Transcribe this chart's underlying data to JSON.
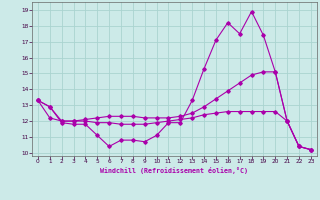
{
  "xlabel": "Windchill (Refroidissement éolien,°C)",
  "xlim": [
    -0.5,
    23.5
  ],
  "ylim": [
    9.8,
    19.5
  ],
  "yticks": [
    10,
    11,
    12,
    13,
    14,
    15,
    16,
    17,
    18,
    19
  ],
  "xticks": [
    0,
    1,
    2,
    3,
    4,
    5,
    6,
    7,
    8,
    9,
    10,
    11,
    12,
    13,
    14,
    15,
    16,
    17,
    18,
    19,
    20,
    21,
    22,
    23
  ],
  "bg_color": "#cceae8",
  "grid_color": "#aad4d0",
  "line_color": "#aa00aa",
  "series": [
    [
      13.3,
      12.9,
      11.9,
      11.8,
      11.8,
      11.1,
      10.4,
      10.8,
      10.8,
      10.7,
      11.1,
      11.9,
      11.9,
      13.3,
      15.3,
      17.1,
      18.2,
      17.5,
      18.9,
      17.4,
      15.1,
      12.0,
      10.4,
      10.2
    ],
    [
      13.3,
      12.2,
      12.0,
      12.0,
      12.1,
      12.2,
      12.3,
      12.3,
      12.3,
      12.2,
      12.2,
      12.2,
      12.3,
      12.5,
      12.9,
      13.4,
      13.9,
      14.4,
      14.9,
      15.1,
      15.1,
      12.0,
      10.4,
      10.2
    ],
    [
      13.3,
      12.9,
      12.0,
      12.0,
      12.0,
      11.9,
      11.9,
      11.8,
      11.8,
      11.8,
      11.9,
      12.0,
      12.1,
      12.2,
      12.4,
      12.5,
      12.6,
      12.6,
      12.6,
      12.6,
      12.6,
      12.0,
      10.4,
      10.2
    ]
  ]
}
